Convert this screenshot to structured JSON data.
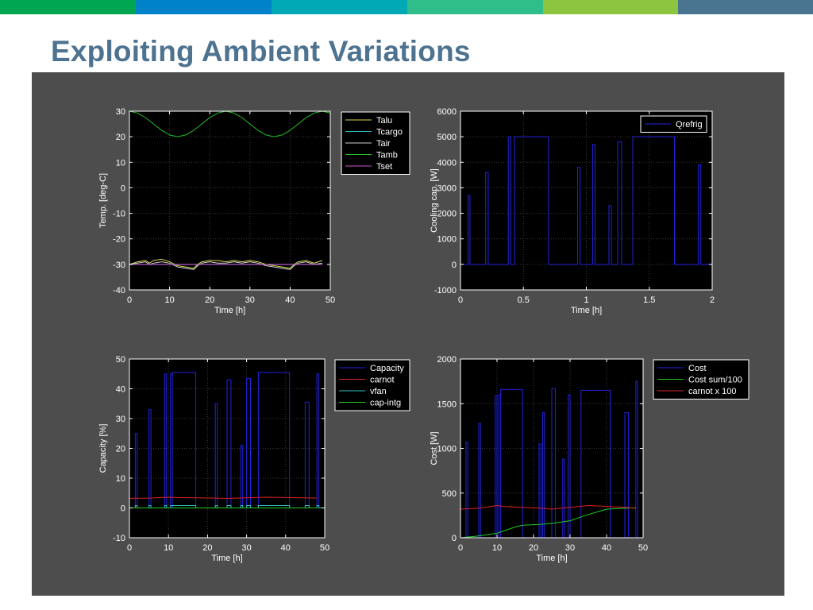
{
  "slide": {
    "title": "Exploiting Ambient Variations",
    "topbar_colors": [
      "#00a651",
      "#0082c8",
      "#00a9b5",
      "#2fbd8a",
      "#8cc63f",
      "#4a7590"
    ]
  },
  "colors": {
    "panel": "#4d4d4d",
    "axes_bg": "#000000",
    "axes_fg": "#ffffff"
  },
  "chart_data": [
    {
      "type": "line",
      "xlabel": "Time [h]",
      "ylabel": "Temp. [deg-C]",
      "xlim": [
        0,
        50
      ],
      "ylim": [
        -40,
        30
      ],
      "xticks": [
        0,
        10,
        20,
        30,
        40,
        50
      ],
      "yticks": [
        -40,
        -30,
        -20,
        -10,
        0,
        10,
        20,
        30
      ],
      "grid": true,
      "legend_position": "outside-right",
      "series": [
        {
          "name": "Talu",
          "color": "#d8d84a",
          "x": [
            0,
            2,
            4,
            5,
            6,
            8,
            10,
            12,
            14,
            16,
            17,
            18,
            20,
            22,
            24,
            26,
            28,
            30,
            32,
            34,
            36,
            38,
            40,
            41,
            42,
            44,
            46,
            48
          ],
          "y": [
            -30,
            -29,
            -28.5,
            -29.5,
            -28.5,
            -28,
            -29,
            -30.5,
            -31,
            -31.5,
            -30,
            -29,
            -28.5,
            -28.5,
            -29,
            -28.5,
            -29,
            -28.5,
            -29,
            -30,
            -30.5,
            -31,
            -31.5,
            -30,
            -29,
            -28.5,
            -29.5,
            -28.5
          ]
        },
        {
          "name": "Tcargo",
          "color": "#2fbfbf",
          "x": [
            0,
            48
          ],
          "y": [
            -30,
            -30
          ]
        },
        {
          "name": "Tair",
          "color": "#cfcfcf",
          "x": [
            0,
            2,
            4,
            5,
            6,
            8,
            10,
            12,
            14,
            16,
            17,
            18,
            20,
            22,
            24,
            26,
            28,
            30,
            32,
            34,
            36,
            38,
            40,
            41,
            42,
            44,
            46,
            48
          ],
          "y": [
            -30,
            -29.5,
            -29,
            -30,
            -29.5,
            -29,
            -29.5,
            -31,
            -31.5,
            -32,
            -30.5,
            -29.5,
            -29,
            -29.5,
            -29.5,
            -29,
            -29.5,
            -29,
            -29.5,
            -30.5,
            -31,
            -31.5,
            -32,
            -30.5,
            -29.5,
            -29,
            -30,
            -29.5
          ]
        },
        {
          "name": "Tamb",
          "color": "#22c022",
          "x": [
            0,
            2,
            4,
            6,
            8,
            10,
            12,
            14,
            16,
            18,
            20,
            22,
            24,
            26,
            28,
            30,
            32,
            34,
            36,
            38,
            40,
            42,
            44,
            46,
            48,
            50
          ],
          "y": [
            30,
            29.3,
            27.5,
            25,
            22.5,
            20.7,
            20,
            20.7,
            22.5,
            25,
            27.5,
            29.3,
            30,
            29.3,
            27.5,
            25,
            22.5,
            20.7,
            20,
            20.7,
            22.5,
            25,
            27.5,
            29.3,
            30,
            29.3
          ]
        },
        {
          "name": "Tset",
          "color": "#d04fd0",
          "x": [
            0,
            48
          ],
          "y": [
            -30,
            -30
          ]
        }
      ]
    },
    {
      "type": "line",
      "xlabel": "Time [h]",
      "ylabel": "Cooling cap. [W]",
      "xlim": [
        0,
        2
      ],
      "ylim": [
        -1000,
        6000
      ],
      "xticks": [
        0,
        0.5,
        1,
        1.5,
        2
      ],
      "xtick_labels": [
        "0",
        "0.5",
        "1",
        "1.5",
        "2"
      ],
      "yticks": [
        -1000,
        0,
        1000,
        2000,
        3000,
        4000,
        5000,
        6000
      ],
      "grid": true,
      "legend_position": "top-right",
      "series": [
        {
          "name": "Qrefrig",
          "color": "#2222dd",
          "pulses": [
            [
              0.06,
              0.075,
              2700
            ],
            [
              0.2,
              0.22,
              3600
            ],
            [
              0.38,
              0.4,
              5000
            ],
            [
              0.43,
              0.7,
              5000
            ],
            [
              0.93,
              0.95,
              3800
            ],
            [
              1.05,
              1.07,
              4700
            ],
            [
              1.18,
              1.2,
              2300
            ],
            [
              1.25,
              1.28,
              4800
            ],
            [
              1.37,
              1.7,
              5000
            ],
            [
              1.89,
              1.91,
              3900
            ]
          ]
        }
      ]
    },
    {
      "type": "line",
      "xlabel": "Time [h]",
      "ylabel": "Capacity [%]",
      "xlim": [
        0,
        50
      ],
      "ylim": [
        -10,
        50
      ],
      "xticks": [
        0,
        10,
        20,
        30,
        40,
        50
      ],
      "yticks": [
        -10,
        0,
        10,
        20,
        30,
        40,
        50
      ],
      "grid": true,
      "legend_position": "outside-right",
      "series": [
        {
          "name": "Capacity",
          "color": "#2222dd",
          "pulses": [
            [
              1.5,
              2,
              25
            ],
            [
              5,
              5.5,
              33
            ],
            [
              9,
              9.5,
              45
            ],
            [
              10.5,
              11,
              45
            ],
            [
              11,
              17,
              45.5
            ],
            [
              22,
              22.5,
              35
            ],
            [
              25,
              26,
              43
            ],
            [
              28.5,
              29,
              21
            ],
            [
              30,
              31,
              43.5
            ],
            [
              33,
              41,
              45.5
            ],
            [
              45,
              46,
              35.5
            ],
            [
              48,
              48.5,
              45
            ]
          ]
        },
        {
          "name": "carnot",
          "color": "#dd2222",
          "x": [
            0,
            5,
            10,
            12,
            17,
            22,
            25,
            30,
            35,
            40,
            45,
            48
          ],
          "y": [
            3.2,
            3.3,
            3.6,
            3.5,
            3.4,
            3.3,
            3.2,
            3.4,
            3.6,
            3.5,
            3.4,
            3.3
          ]
        },
        {
          "name": "vfan",
          "color": "#2fbfbf",
          "pulses": [
            [
              1.5,
              2,
              0.8
            ],
            [
              5,
              5.5,
              0.8
            ],
            [
              9,
              9.5,
              0.8
            ],
            [
              10.5,
              17,
              0.8
            ],
            [
              22,
              22.5,
              0.8
            ],
            [
              25,
              26,
              0.8
            ],
            [
              28.5,
              29,
              0.8
            ],
            [
              30,
              31,
              0.8
            ],
            [
              33,
              41,
              0.8
            ],
            [
              45,
              46,
              0.8
            ],
            [
              48,
              48.5,
              0.8
            ]
          ]
        },
        {
          "name": "cap-intg",
          "color": "#22cc22",
          "x": [
            0,
            48
          ],
          "y": [
            0,
            0
          ]
        }
      ]
    },
    {
      "type": "line",
      "xlabel": "Time [h]",
      "ylabel": "Cost [W]",
      "xlim": [
        0,
        50
      ],
      "ylim": [
        0,
        2000
      ],
      "xticks": [
        0,
        10,
        20,
        30,
        40,
        50
      ],
      "yticks": [
        0,
        500,
        1000,
        1500,
        2000
      ],
      "grid": true,
      "legend_position": "outside-right",
      "series": [
        {
          "name": "Cost",
          "color": "#2222dd",
          "pulses": [
            [
              1.5,
              2,
              1070
            ],
            [
              5,
              5.5,
              1280
            ],
            [
              9.5,
              10,
              1590
            ],
            [
              10.5,
              11,
              1600
            ],
            [
              11,
              17,
              1660
            ],
            [
              21.5,
              22,
              1050
            ],
            [
              22.5,
              23,
              1400
            ],
            [
              25,
              26,
              1670
            ],
            [
              28,
              28.5,
              880
            ],
            [
              29.5,
              30,
              1600
            ],
            [
              33,
              41,
              1650
            ],
            [
              45,
              46,
              1400
            ],
            [
              48,
              48.5,
              1750
            ]
          ]
        },
        {
          "name": "Cost sum/100",
          "color": "#22cc22",
          "x": [
            0,
            5,
            10,
            15,
            17,
            22,
            25,
            30,
            35,
            40,
            45,
            48
          ],
          "y": [
            0,
            20,
            50,
            120,
            140,
            150,
            160,
            190,
            260,
            320,
            330,
            335
          ]
        },
        {
          "name": "carnot x 100",
          "color": "#dd2222",
          "x": [
            0,
            5,
            10,
            12,
            17,
            22,
            25,
            30,
            35,
            40,
            45,
            48
          ],
          "y": [
            320,
            330,
            360,
            350,
            340,
            330,
            320,
            340,
            360,
            350,
            340,
            330
          ]
        }
      ]
    }
  ]
}
